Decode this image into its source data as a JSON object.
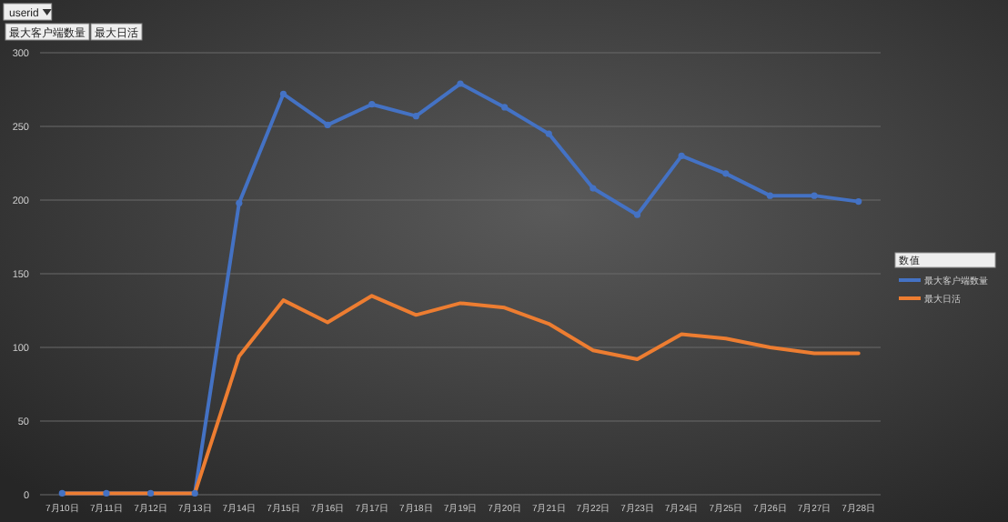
{
  "chart_data": {
    "type": "line",
    "categories": [
      "7月10日",
      "7月11日",
      "7月12日",
      "7月13日",
      "7月14日",
      "7月15日",
      "7月16日",
      "7月17日",
      "7月18日",
      "7月19日",
      "7月20日",
      "7月21日",
      "7月22日",
      "7月23日",
      "7月24日",
      "7月25日",
      "7月26日",
      "7月27日",
      "7月28日"
    ],
    "series": [
      {
        "name": "最大客户端数量",
        "color": "#4472c4",
        "marker": "circle",
        "values": [
          1,
          1,
          1,
          1,
          198,
          272,
          251,
          265,
          257,
          279,
          263,
          245,
          208,
          190,
          230,
          218,
          203,
          203,
          199
        ]
      },
      {
        "name": "最大日活",
        "color": "#ed7d31",
        "marker": "none",
        "values": [
          1,
          1,
          1,
          1,
          94,
          132,
          117,
          135,
          122,
          130,
          127,
          116,
          98,
          92,
          109,
          106,
          100,
          96,
          96
        ]
      }
    ],
    "ylim": [
      0,
      300
    ],
    "yticks": [
      0,
      50,
      100,
      150,
      200,
      250,
      300
    ],
    "grid": "y",
    "legend": "right",
    "legend_title": "数值",
    "annotations": [
      "userid",
      "最大客户端数量",
      "最大日活"
    ]
  }
}
